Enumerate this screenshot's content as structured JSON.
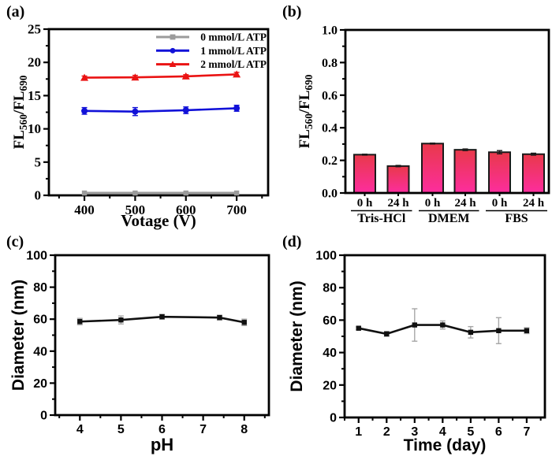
{
  "figure": {
    "background": "#ffffff",
    "text_color": "#000000"
  },
  "panels": [
    {
      "label": "(a)"
    },
    {
      "label": "(b)"
    },
    {
      "label": "(c)"
    },
    {
      "label": "(d)"
    }
  ],
  "chart_data": [
    {
      "id": "a",
      "type": "line",
      "xlabel": "Votage (V)",
      "ylabel_parts": [
        {
          "text": "FL"
        },
        {
          "text": "560",
          "sub": true
        },
        {
          "text": "/FL"
        },
        {
          "text": "690",
          "sub": true
        }
      ],
      "xlim": [
        330,
        762
      ],
      "ylim": [
        0,
        25
      ],
      "xticks": [
        400,
        500,
        600,
        700
      ],
      "xtick_labels": [
        "400",
        "500",
        "600",
        "700"
      ],
      "yticks": [
        0,
        5,
        10,
        15,
        20,
        25
      ],
      "ytick_labels": [
        "0",
        "5",
        "10",
        "15",
        "20",
        "25"
      ],
      "grid": false,
      "legend_position": "top-right",
      "x": [
        400,
        500,
        600,
        700
      ],
      "series": [
        {
          "name": "0 mmol/L ATP",
          "color": "#9b9b9b",
          "marker": "square",
          "values": [
            0.35,
            0.35,
            0.35,
            0.35
          ],
          "errors": [
            0,
            0,
            0,
            0
          ],
          "line_width": 3.2
        },
        {
          "name": "1 mmol/L ATP",
          "color": "#1111d8",
          "marker": "circle",
          "values": [
            12.7,
            12.6,
            12.8,
            13.1
          ],
          "errors": [
            0.5,
            0.6,
            0.5,
            0.45
          ],
          "line_width": 2.6
        },
        {
          "name": "2 mmol/L ATP",
          "color": "#ea1313",
          "marker": "triangle",
          "values": [
            17.7,
            17.75,
            17.9,
            18.2
          ],
          "errors": [
            0.25,
            0.3,
            0.25,
            0.3
          ],
          "line_width": 2.6
        }
      ]
    },
    {
      "id": "b",
      "type": "bar",
      "ylabel_parts": [
        {
          "text": "FL"
        },
        {
          "text": "560",
          "sub": true
        },
        {
          "text": "/FL"
        },
        {
          "text": "690",
          "sub": true
        }
      ],
      "ylim": [
        0,
        1.0
      ],
      "yticks": [
        0,
        0.2,
        0.4,
        0.6,
        0.8,
        1.0
      ],
      "ytick_labels": [
        "0.0",
        "0.2",
        "0.4",
        "0.6",
        "0.8",
        "1.0"
      ],
      "grid": false,
      "categories": [
        "0 h",
        "24 h",
        "0 h",
        "24 h",
        "0 h",
        "24 h"
      ],
      "groups": [
        "Tris-HCl",
        "DMEM",
        "FBS"
      ],
      "values": [
        0.235,
        0.165,
        0.303,
        0.265,
        0.25,
        0.238
      ],
      "errors": [
        0.003,
        0.004,
        0.003,
        0.005,
        0.01,
        0.006
      ],
      "bar_fill_top": "#e8394a",
      "bar_fill_bottom": "#fd2d9e",
      "bar_border": "#1a1a1a",
      "error_color": "#1a1a1a"
    },
    {
      "id": "c",
      "type": "line",
      "xlabel": "pH",
      "ylabel": "Diameter (nm)",
      "xlim": [
        3.4,
        8.6
      ],
      "ylim": [
        0,
        100
      ],
      "xticks": [
        4,
        5,
        6,
        7,
        8
      ],
      "xtick_labels": [
        "4",
        "5",
        "6",
        "7",
        "8"
      ],
      "yticks": [
        0,
        20,
        40,
        60,
        80,
        100
      ],
      "ytick_labels": [
        "0",
        "20",
        "40",
        "60",
        "80",
        "100"
      ],
      "grid": false,
      "x": [
        4,
        5,
        6,
        7.4,
        8
      ],
      "series": [
        {
          "name": "Diameter",
          "color": "#111111",
          "marker": "square",
          "values": [
            58.5,
            59.5,
            61.5,
            61,
            58
          ],
          "errors": [
            2,
            2.5,
            1.5,
            1.5,
            2
          ],
          "error_color": "#a6a6a6",
          "line_width": 2.6
        }
      ]
    },
    {
      "id": "d",
      "type": "line",
      "xlabel": "Time (day)",
      "ylabel": "Diameter (nm)",
      "xlim": [
        0.5,
        7.65
      ],
      "ylim": [
        0,
        100
      ],
      "xticks": [
        1,
        2,
        3,
        4,
        5,
        6,
        7
      ],
      "xtick_labels": [
        "1",
        "2",
        "3",
        "4",
        "5",
        "6",
        "7"
      ],
      "yticks": [
        0,
        20,
        40,
        60,
        80,
        100
      ],
      "ytick_labels": [
        "0",
        "20",
        "40",
        "60",
        "80",
        "100"
      ],
      "grid": false,
      "x": [
        1,
        2,
        3,
        4,
        5,
        6,
        7
      ],
      "series": [
        {
          "name": "Diameter",
          "color": "#111111",
          "marker": "square",
          "values": [
            55,
            51.5,
            57,
            57,
            52.5,
            53.5,
            53.5
          ],
          "errors": [
            0.8,
            1.5,
            10,
            2.5,
            3.5,
            8,
            1.8
          ],
          "error_color": "#a6a6a6",
          "line_width": 2.6
        }
      ]
    }
  ]
}
